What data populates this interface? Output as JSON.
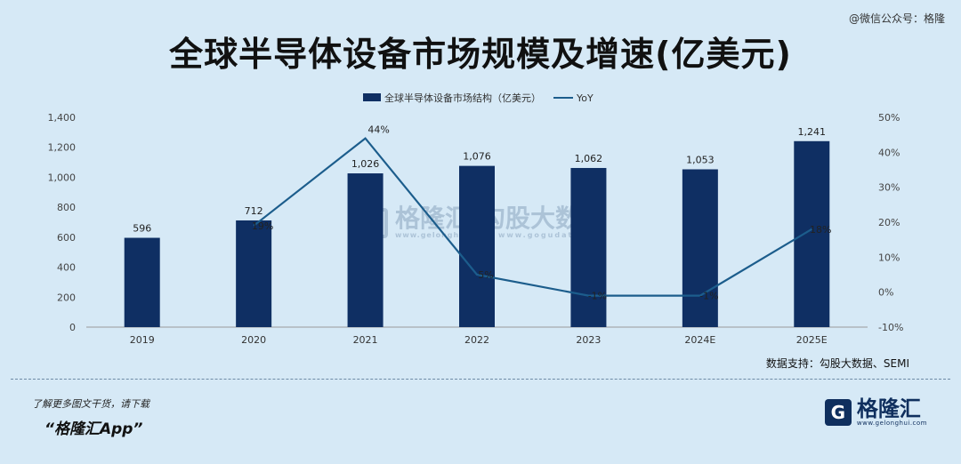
{
  "header": {
    "wechat_tag": "@微信公众号：格隆",
    "title": "全球半导体设备市场规模及增速(亿美元)"
  },
  "chart_data": {
    "type": "bar",
    "categories": [
      "2019",
      "2020",
      "2021",
      "2022",
      "2023",
      "2024E",
      "2025E"
    ],
    "series": [
      {
        "name": "全球半导体设备市场结构（亿美元）",
        "type": "bar",
        "axis": "left",
        "values": [
          596,
          712,
          1026,
          1076,
          1062,
          1053,
          1241
        ],
        "labels": [
          "596",
          "712",
          "1,026",
          "1,076",
          "1,062",
          "1,053",
          "1,241"
        ]
      },
      {
        "name": "YoY",
        "type": "line",
        "axis": "right",
        "values": [
          null,
          19,
          44,
          5,
          -1,
          -1,
          18
        ],
        "labels": [
          "",
          "19%",
          "44%",
          "5%",
          "-1%",
          "-1%",
          "18%"
        ]
      }
    ],
    "ylim_left": [
      0,
      1400
    ],
    "yticks_left": [
      "0",
      "200",
      "400",
      "600",
      "800",
      "1,000",
      "1,200",
      "1,400"
    ],
    "ylim_right": [
      -10,
      50
    ],
    "yticks_right": [
      "-10%",
      "0%",
      "10%",
      "20%",
      "30%",
      "40%",
      "50%"
    ],
    "legend_position": "top-center",
    "grid": false,
    "colors": {
      "bar": "#0f2f63",
      "line": "#1c5d8c",
      "background": "#d6e9f6"
    }
  },
  "footer": {
    "source": "数据支持：勾股大数据、SEMI",
    "promo_line1": "了解更多图文干货，请下载",
    "promo_line2": "“格隆汇App”",
    "logo_mark": "G",
    "logo_name": "格隆汇",
    "logo_url": "www.gelonghui.com"
  },
  "watermark": {
    "mark": "G",
    "name": "格隆汇",
    "url": "www.gelonghui.com",
    "name2": "勾股大数据",
    "url2": "www.gogudata.com"
  }
}
